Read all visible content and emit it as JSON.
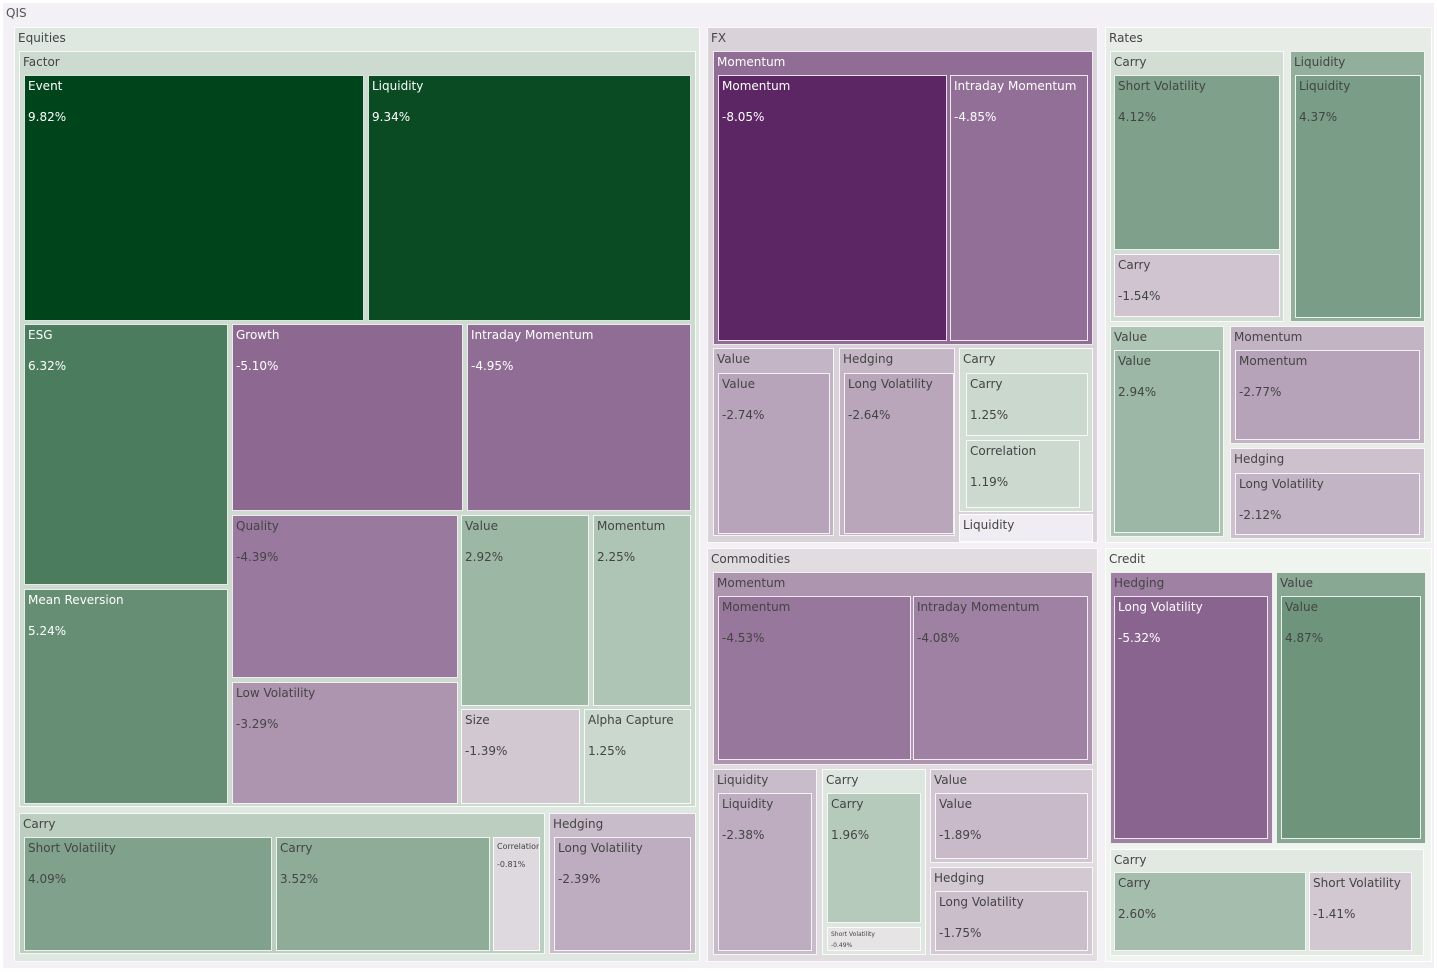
{
  "chart_data": {
    "type": "treemap",
    "root": "QIS",
    "tree": [
      {
        "name": "Equities",
        "children": [
          {
            "name": "Factor",
            "children": [
              {
                "name": "Event",
                "value": 9.82
              },
              {
                "name": "Liquidity",
                "value": 9.34
              },
              {
                "name": "ESG",
                "value": 6.32
              },
              {
                "name": "Growth",
                "value": -5.1
              },
              {
                "name": "Intraday Momentum",
                "value": -4.95
              },
              {
                "name": "Mean Reversion",
                "value": 5.24
              },
              {
                "name": "Quality",
                "value": -4.39
              },
              {
                "name": "Value",
                "value": 2.92
              },
              {
                "name": "Momentum",
                "value": 2.25
              },
              {
                "name": "Low Volatility",
                "value": -3.29
              },
              {
                "name": "Size",
                "value": -1.39
              },
              {
                "name": "Alpha Capture",
                "value": 1.25
              }
            ]
          },
          {
            "name": "Carry",
            "children": [
              {
                "name": "Short Volatility",
                "value": 4.09
              },
              {
                "name": "Carry",
                "value": 3.52
              },
              {
                "name": "Correlation",
                "value": -0.81
              }
            ]
          },
          {
            "name": "Hedging",
            "children": [
              {
                "name": "Long Volatility",
                "value": -2.39
              }
            ]
          }
        ]
      },
      {
        "name": "FX",
        "children": [
          {
            "name": "Momentum",
            "children": [
              {
                "name": "Momentum",
                "value": -8.05
              },
              {
                "name": "Intraday Momentum",
                "value": -4.85
              }
            ]
          },
          {
            "name": "Value",
            "children": [
              {
                "name": "Value",
                "value": -2.74
              }
            ]
          },
          {
            "name": "Hedging",
            "children": [
              {
                "name": "Long Volatility",
                "value": -2.64
              }
            ]
          },
          {
            "name": "Carry",
            "children": [
              {
                "name": "Carry",
                "value": 1.25
              },
              {
                "name": "Correlation",
                "value": 1.19
              }
            ]
          },
          {
            "name": "Liquidity",
            "children": []
          }
        ]
      },
      {
        "name": "Rates",
        "children": [
          {
            "name": "Carry",
            "children": [
              {
                "name": "Short Volatility",
                "value": 4.12
              },
              {
                "name": "Carry",
                "value": -1.54
              }
            ]
          },
          {
            "name": "Liquidity",
            "children": [
              {
                "name": "Liquidity",
                "value": 4.37
              }
            ]
          },
          {
            "name": "Value",
            "children": [
              {
                "name": "Value",
                "value": 2.94
              }
            ]
          },
          {
            "name": "Momentum",
            "children": [
              {
                "name": "Momentum",
                "value": -2.77
              }
            ]
          },
          {
            "name": "Hedging",
            "children": [
              {
                "name": "Long Volatility",
                "value": -2.12
              }
            ]
          }
        ]
      },
      {
        "name": "Commodities",
        "children": [
          {
            "name": "Momentum",
            "children": [
              {
                "name": "Momentum",
                "value": -4.53
              },
              {
                "name": "Intraday Momentum",
                "value": -4.08
              }
            ]
          },
          {
            "name": "Liquidity",
            "children": [
              {
                "name": "Liquidity",
                "value": -2.38
              }
            ]
          },
          {
            "name": "Carry",
            "children": [
              {
                "name": "Carry",
                "value": 1.96
              },
              {
                "name": "Short Volatility",
                "value": -0.49
              }
            ]
          },
          {
            "name": "Value",
            "children": [
              {
                "name": "Value",
                "value": -1.89
              }
            ]
          },
          {
            "name": "Hedging",
            "children": [
              {
                "name": "Long Volatility",
                "value": -1.75
              }
            ]
          }
        ]
      },
      {
        "name": "Credit",
        "children": [
          {
            "name": "Hedging",
            "children": [
              {
                "name": "Long Volatility",
                "value": -5.32
              }
            ]
          },
          {
            "name": "Value",
            "children": [
              {
                "name": "Value",
                "value": 4.87
              }
            ]
          },
          {
            "name": "Carry",
            "children": [
              {
                "name": "Carry",
                "value": 2.6
              },
              {
                "name": "Short Volatility",
                "value": -1.41
              }
            ]
          }
        ]
      }
    ],
    "color_scale": {
      "negative": "#40004b",
      "mid": "#f7f7f7",
      "positive": "#00441b"
    }
  }
}
